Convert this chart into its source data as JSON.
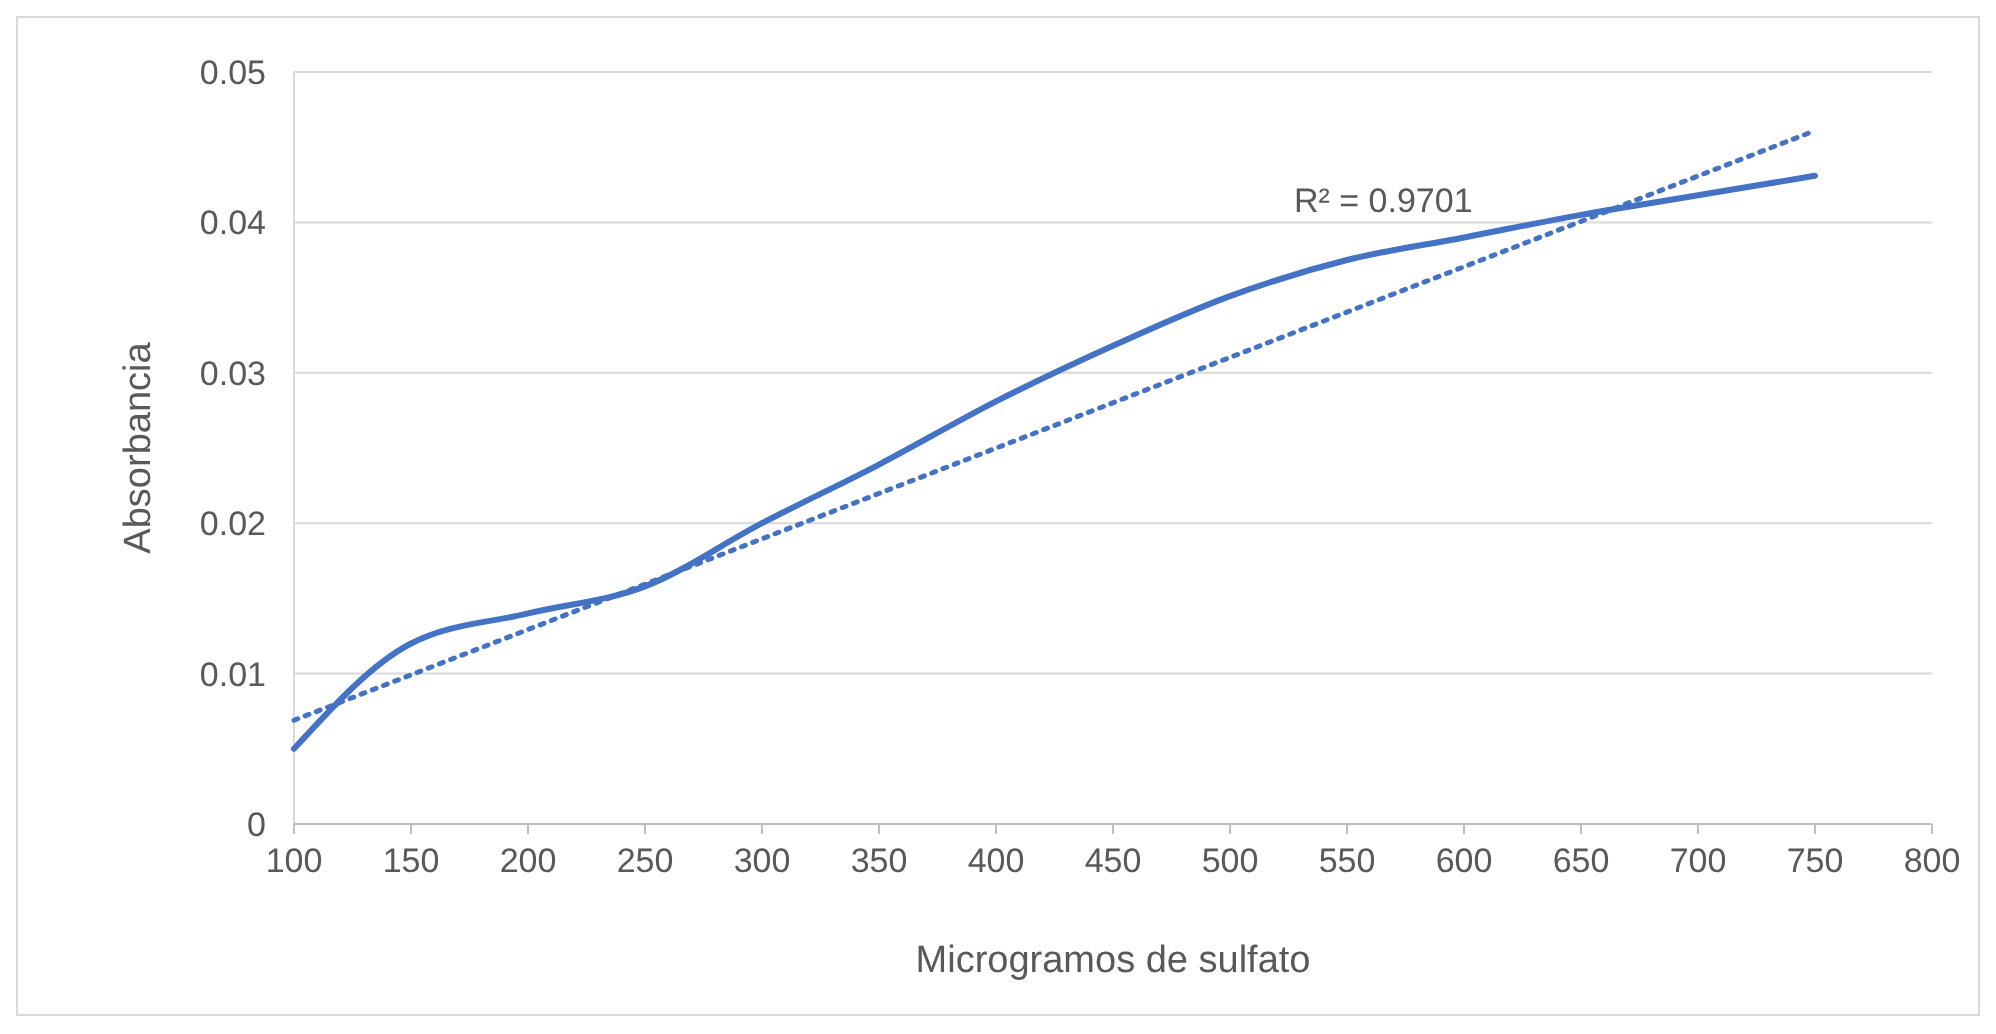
{
  "chart_data": {
    "type": "line",
    "xlabel": "Microgramos de sulfato",
    "ylabel": "Absorbancia",
    "xlim": [
      100,
      800
    ],
    "xticks": [
      100,
      150,
      200,
      250,
      300,
      350,
      400,
      450,
      500,
      550,
      600,
      650,
      700,
      750,
      800
    ],
    "ylim": [
      0,
      0.05
    ],
    "yticks": [
      0,
      0.01,
      0.02,
      0.03,
      0.04,
      0.05
    ],
    "grid": "y",
    "marker": "none",
    "series": [
      {
        "color": "#4472c4",
        "line_style": "solid",
        "x": [
          100,
          150,
          200,
          250,
          300,
          350,
          400,
          450,
          500,
          550,
          600,
          650,
          700,
          750
        ],
        "values": [
          0.005,
          0.012,
          0.014,
          0.0158,
          0.02,
          0.0239,
          0.0281,
          0.0318,
          0.0351,
          0.0375,
          0.039,
          0.0405,
          0.0418,
          0.0431
        ]
      },
      {
        "type": "line",
        "color": "#4472c4",
        "line_style": "dotted",
        "x": [
          100,
          750
        ],
        "values": [
          0.0069,
          0.0461
        ]
      }
    ],
    "annotations": [
      "R² = 0.9701"
    ]
  }
}
